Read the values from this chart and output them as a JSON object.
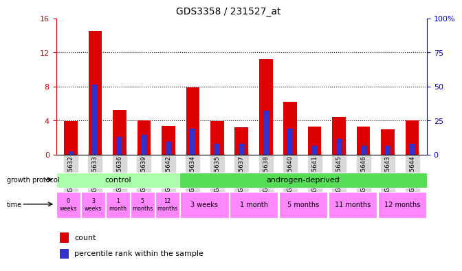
{
  "title": "GDS3358 / 231527_at",
  "samples": [
    "GSM215632",
    "GSM215633",
    "GSM215636",
    "GSM215639",
    "GSM215642",
    "GSM215634",
    "GSM215635",
    "GSM215637",
    "GSM215638",
    "GSM215640",
    "GSM215641",
    "GSM215645",
    "GSM215646",
    "GSM215643",
    "GSM215644"
  ],
  "count_values": [
    3.9,
    14.5,
    5.2,
    4.0,
    3.4,
    7.9,
    3.9,
    3.2,
    11.2,
    6.2,
    3.3,
    4.4,
    3.3,
    3.0,
    4.0
  ],
  "percentile_values": [
    2.4,
    51.2,
    12.8,
    14.4,
    9.6,
    19.2,
    8.0,
    8.0,
    32.0,
    19.2,
    6.4,
    11.2,
    6.4,
    6.4,
    8.0
  ],
  "ylim_left": [
    0,
    16
  ],
  "ylim_right": [
    0,
    100
  ],
  "yticks_left": [
    0,
    4,
    8,
    12,
    16
  ],
  "yticks_right": [
    0,
    25,
    50,
    75,
    100
  ],
  "yticklabels_left": [
    "0",
    "4",
    "8",
    "12",
    "16"
  ],
  "yticklabels_right": [
    "0",
    "25",
    "50",
    "75",
    "100%"
  ],
  "bar_color_red": "#dd0000",
  "bar_color_blue": "#3333cc",
  "control_group_label": "control",
  "control_group_color": "#aaffaa",
  "androgen_group_label": "androgen-deprived",
  "androgen_group_color": "#55dd55",
  "time_labels_control": [
    "0\nweeks",
    "3\nweeks",
    "1\nmonth",
    "5\nmonths",
    "12\nmonths"
  ],
  "time_labels_androgen": [
    "3 weeks",
    "1 month",
    "5 months",
    "11 months",
    "12 months"
  ],
  "time_color": "#ff88ff",
  "legend_count": "count",
  "legend_percentile": "percentile rank within the sample",
  "left_axis_color": "#cc0000",
  "right_axis_color": "#0000cc",
  "bg_color": "#ffffff",
  "dotted_line_color": "#000000",
  "growth_protocol_label": "growth protocol",
  "time_label": "time"
}
